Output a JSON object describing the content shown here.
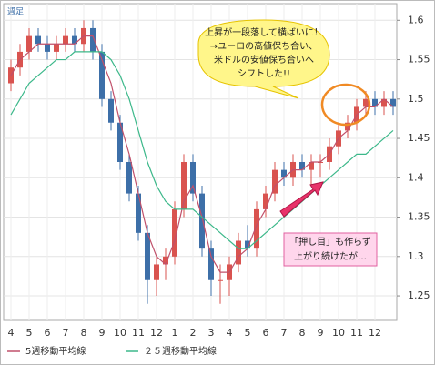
{
  "chart_data": {
    "type": "candlestick",
    "label": "週足",
    "categories": [
      "4",
      null,
      "5",
      null,
      "6",
      null,
      "7",
      null,
      "8",
      null,
      "9",
      null,
      "10",
      null,
      "11",
      null,
      "12",
      null,
      "1",
      null,
      "2",
      null,
      "3",
      null,
      "4",
      null,
      "5",
      null,
      "6",
      null,
      "7",
      null,
      "8",
      null,
      "9",
      null,
      "10",
      null,
      "11",
      null,
      "12",
      null,
      null
    ],
    "open": [
      1.52,
      1.54,
      1.56,
      1.58,
      1.57,
      1.56,
      1.57,
      1.58,
      1.57,
      1.59,
      1.56,
      1.5,
      1.47,
      1.42,
      1.38,
      1.33,
      1.27,
      1.29,
      1.3,
      1.36,
      1.42,
      1.38,
      1.31,
      1.27,
      1.27,
      1.29,
      1.32,
      1.31,
      1.36,
      1.38,
      1.41,
      1.4,
      1.42,
      1.41,
      1.42,
      1.42,
      1.44,
      1.46,
      1.47,
      1.49,
      1.5,
      1.49,
      1.5
    ],
    "high": [
      1.55,
      1.57,
      1.59,
      1.59,
      1.58,
      1.58,
      1.59,
      1.59,
      1.6,
      1.6,
      1.57,
      1.51,
      1.48,
      1.43,
      1.39,
      1.34,
      1.3,
      1.31,
      1.37,
      1.43,
      1.43,
      1.39,
      1.32,
      1.29,
      1.3,
      1.33,
      1.34,
      1.37,
      1.39,
      1.42,
      1.42,
      1.43,
      1.43,
      1.43,
      1.43,
      1.45,
      1.47,
      1.48,
      1.5,
      1.51,
      1.51,
      1.51,
      1.51
    ],
    "low": [
      1.51,
      1.53,
      1.55,
      1.56,
      1.55,
      1.55,
      1.56,
      1.56,
      1.56,
      1.55,
      1.49,
      1.46,
      1.41,
      1.37,
      1.32,
      1.24,
      1.25,
      1.27,
      1.29,
      1.35,
      1.37,
      1.3,
      1.25,
      1.24,
      1.25,
      1.28,
      1.3,
      1.3,
      1.35,
      1.37,
      1.39,
      1.39,
      1.4,
      1.39,
      1.4,
      1.41,
      1.43,
      1.45,
      1.46,
      1.48,
      1.48,
      1.48,
      1.48
    ],
    "close": [
      1.54,
      1.56,
      1.58,
      1.57,
      1.56,
      1.57,
      1.58,
      1.57,
      1.59,
      1.56,
      1.5,
      1.47,
      1.42,
      1.38,
      1.33,
      1.27,
      1.29,
      1.3,
      1.36,
      1.42,
      1.38,
      1.31,
      1.27,
      1.27,
      1.29,
      1.32,
      1.31,
      1.36,
      1.38,
      1.41,
      1.4,
      1.42,
      1.41,
      1.42,
      1.42,
      1.44,
      1.46,
      1.47,
      1.49,
      1.5,
      1.49,
      1.5,
      1.49
    ],
    "up_color": "#d9534f",
    "down_color": "#3d6fa8",
    "series": [
      {
        "name": "5週移動平均線",
        "color": "#c0506a",
        "values": [
          1.53,
          1.55,
          1.56,
          1.57,
          1.57,
          1.57,
          1.57,
          1.57,
          1.58,
          1.58,
          1.55,
          1.52,
          1.47,
          1.43,
          1.38,
          1.33,
          1.3,
          1.29,
          1.32,
          1.37,
          1.39,
          1.35,
          1.3,
          1.28,
          1.28,
          1.3,
          1.31,
          1.34,
          1.36,
          1.39,
          1.4,
          1.41,
          1.41,
          1.42,
          1.42,
          1.43,
          1.45,
          1.46,
          1.48,
          1.49,
          1.49,
          1.5,
          1.49
        ]
      },
      {
        "name": "２５週移動平均線",
        "color": "#3cb88a",
        "values": [
          1.48,
          1.5,
          1.52,
          1.53,
          1.54,
          1.55,
          1.55,
          1.56,
          1.56,
          1.56,
          1.56,
          1.55,
          1.53,
          1.5,
          1.46,
          1.42,
          1.39,
          1.37,
          1.36,
          1.36,
          1.36,
          1.35,
          1.34,
          1.33,
          1.32,
          1.31,
          1.31,
          1.32,
          1.33,
          1.34,
          1.35,
          1.36,
          1.37,
          1.38,
          1.39,
          1.4,
          1.41,
          1.42,
          1.43,
          1.43,
          1.44,
          1.45,
          1.46
        ]
      }
    ],
    "ylim": [
      1.22,
      1.62
    ],
    "yticks": [
      1.25,
      1.3,
      1.35,
      1.4,
      1.45,
      1.5,
      1.55,
      1.6
    ],
    "grid": true,
    "annotations": [
      {
        "lines": [
          "上昇が一段落して横ばいに！",
          "→ユーロの高値保ち合い、",
          "米ドルの安値保ち合いへ",
          "シフトした!!"
        ]
      },
      {
        "lines": [
          "「押し目」も作らず",
          "上がり続けたが…"
        ]
      }
    ]
  }
}
